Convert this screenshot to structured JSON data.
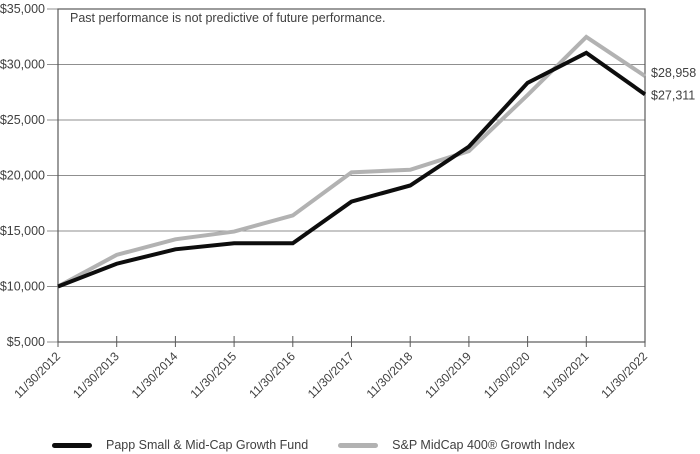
{
  "annotation": "Past performance is not predictive of future performance.",
  "chart_data": {
    "type": "line",
    "title": "",
    "xlabel": "",
    "ylabel": "",
    "x": [
      "11/30/2012",
      "11/30/2013",
      "11/30/2014",
      "11/30/2015",
      "11/30/2016",
      "11/30/2017",
      "11/30/2018",
      "11/30/2019",
      "11/30/2020",
      "11/30/2021",
      "11/30/2022"
    ],
    "series": [
      {
        "id": "fund",
        "name": "Papp Small & Mid-Cap Growth Fund",
        "color": "#0d0d0d",
        "values": [
          10000,
          12050,
          13350,
          13900,
          13900,
          17650,
          19100,
          22600,
          28350,
          31050,
          27311
        ],
        "end_label": "$27,311"
      },
      {
        "id": "index",
        "name": "S&P MidCap 400® Growth Index",
        "color": "#b2b2b2",
        "values": [
          10000,
          12850,
          14250,
          14950,
          16400,
          20280,
          20520,
          22200,
          27250,
          32480,
          28958
        ],
        "end_label": "$28,958"
      }
    ],
    "y_ticks": [
      "$35,000",
      "$30,000",
      "$25,000",
      "$20,000",
      "$15,000",
      "$10,000",
      "$5,000"
    ],
    "ylim": [
      5000,
      35000
    ],
    "grid": true,
    "legend_position": "bottom",
    "colors": {
      "grid": "#8f8f8f",
      "axis": "#595959",
      "text": "#404040"
    }
  }
}
